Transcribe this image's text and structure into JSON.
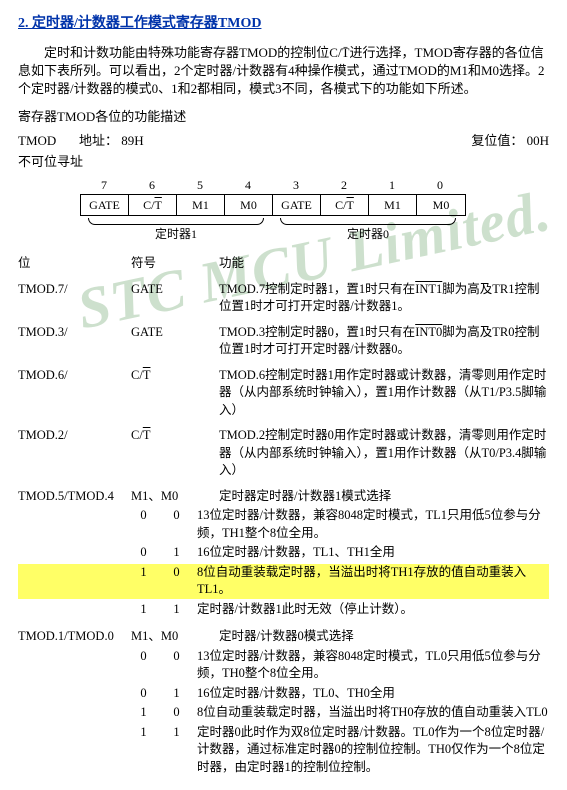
{
  "title": "2. 定时器/计数器工作模式寄存器TMOD",
  "paragraph": "定时和计数功能由特殊功能寄存器TMOD的控制位C/T̄进行选择，TMOD寄存器的各位信息如下表所列。可以看出，2个定时器/计数器有4种操作模式，通过TMOD的M1和M0选择。2个定时器/计数器的模式0、1和2都相同，模式3不同，各模式下的功能如下所述。",
  "section_label": "寄存器TMOD各位的功能描述",
  "header": {
    "name": "TMOD",
    "addr_label": "地址：",
    "addr": "89H",
    "reset_label": "复位值：",
    "reset": "00H",
    "noaddr": "不可位寻址"
  },
  "bits": {
    "nums": [
      "7",
      "6",
      "5",
      "4",
      "3",
      "2",
      "1",
      "0"
    ],
    "cells_plain": [
      "GATE",
      "",
      "M1",
      "M0",
      "GATE",
      "",
      "M1",
      "M0"
    ],
    "ct_label_pre": "C/",
    "ct_label_over": "T",
    "group1": "定时器1",
    "group0": "定时器0"
  },
  "cols": {
    "bit": "位",
    "sym": "符号",
    "func": "功能"
  },
  "rows": [
    {
      "bit": "TMOD.7/",
      "sym": "GATE",
      "func": "TMOD.7控制定时器1，置1时只有在INT1脚为高及TR1控制位置1时才可打开定时器/计数器1。",
      "over": "INT1"
    },
    {
      "bit": "TMOD.3/",
      "sym": "GATE",
      "func": "TMOD.3控制定时器0，置1时只有在INT0脚为高及TR0控制位置1时才可打开定时器/计数器0。",
      "over": "INT0"
    },
    {
      "bit": "TMOD.6/",
      "sym": "C/T",
      "sym_over": true,
      "func": "TMOD.6控制定时器1用作定时器或计数器，清零则用作定时器（从内部系统时钟输入），置1用作计数器（从T1/P3.5脚输入）"
    },
    {
      "bit": "TMOD.2/",
      "sym": "C/T",
      "sym_over": true,
      "func": "TMOD.2控制定时器0用作定时器或计数器，清零则用作定时器（从内部系统时钟输入），置1用作计数器（从T0/P3.4脚输入）"
    }
  ],
  "mode1": {
    "bit": "TMOD.5/TMOD.4",
    "sym": "M1、M0",
    "title": "定时器定时器/计数器1模式选择",
    "rows": [
      {
        "m1": "0",
        "m0": "0",
        "txt": "13位定时器/计数器，兼容8048定时模式，TL1只用低5位参与分频，TH1整个8位全用。"
      },
      {
        "m1": "0",
        "m0": "1",
        "txt": "16位定时器/计数器，TL1、TH1全用"
      },
      {
        "m1": "1",
        "m0": "0",
        "txt": "8位自动重装载定时器，当溢出时将TH1存放的值自动重装入TL1。",
        "hl": true
      },
      {
        "m1": "1",
        "m0": "1",
        "txt": "定时器/计数器1此时无效（停止计数）。"
      }
    ]
  },
  "mode0": {
    "bit": "TMOD.1/TMOD.0",
    "sym": "M1、M0",
    "title": "定时器/计数器0模式选择",
    "rows": [
      {
        "m1": "0",
        "m0": "0",
        "txt": "13位定时器/计数器，兼容8048定时模式，TL0只用低5位参与分频，TH0整个8位全用。"
      },
      {
        "m1": "0",
        "m0": "1",
        "txt": "16位定时器/计数器，TL0、TH0全用"
      },
      {
        "m1": "1",
        "m0": "0",
        "txt": "8位自动重装载定时器，当溢出时将TH0存放的值自动重装入TL0"
      },
      {
        "m1": "1",
        "m0": "1",
        "txt": "定时器0此时作为双8位定时器/计数器。TL0作为一个8位定时器/计数器，通过标准定时器0的控制位控制。TH0仅作为一个8位定时器，由定时器1的控制位控制。"
      }
    ]
  },
  "watermark": "STC MCU Limited."
}
